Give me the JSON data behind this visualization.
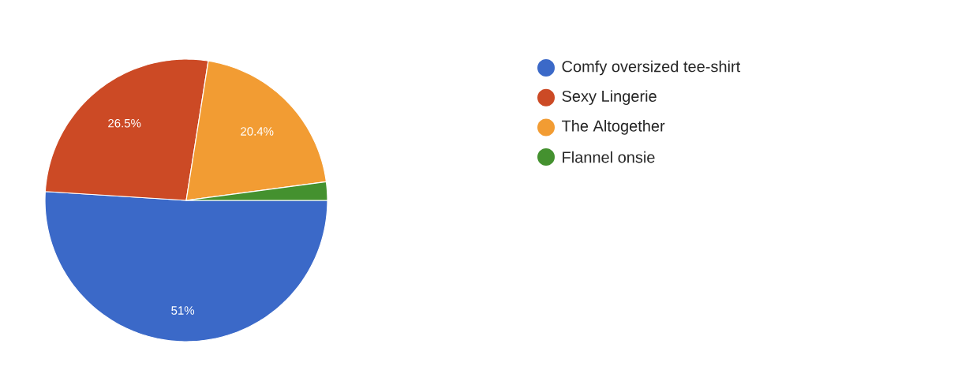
{
  "chart_data": {
    "type": "pie",
    "categories": [
      "Comfy oversized tee-shirt",
      "Sexy Lingerie",
      "The Altogether",
      "Flannel onsie"
    ],
    "values": [
      51,
      26.5,
      20.4,
      2.1
    ],
    "colors": [
      "#3b69c8",
      "#cc4a25",
      "#f29c33",
      "#44912f"
    ],
    "value_labels": [
      "51%",
      "26.5%",
      "20.4%",
      null
    ],
    "legend": "right"
  }
}
